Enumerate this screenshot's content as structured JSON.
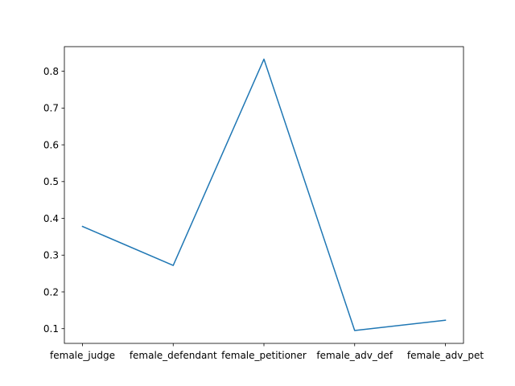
{
  "chart_data": {
    "type": "line",
    "categories": [
      "female_judge",
      "female_defendant",
      "female_petitioner",
      "female_adv_def",
      "female_adv_pet"
    ],
    "series": [
      {
        "values": [
          0.378,
          0.272,
          0.833,
          0.095,
          0.123
        ],
        "color": "#1f77b4"
      }
    ],
    "title": "",
    "xlabel": "",
    "ylabel": "",
    "ylim": [
      0.06,
      0.867
    ],
    "yticks": [
      0.1,
      0.2,
      0.3,
      0.4,
      0.5,
      0.6,
      0.7,
      0.8
    ],
    "grid": false,
    "legend": "none"
  }
}
